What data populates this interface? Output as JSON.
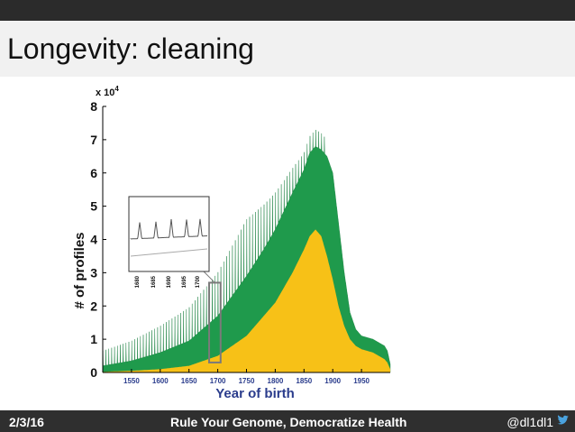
{
  "slide": {
    "title": "Longevity: cleaning",
    "footer_date": "2/3/16",
    "footer_title": "Rule Your Genome, Democratize Health",
    "footer_handle": "@dl1dl1",
    "handle_icon": "twitter-bird-icon"
  },
  "colors": {
    "total": "#1f9a4c",
    "cleaned": "#f7c117",
    "inset_box": "#7a7a7a",
    "top_bar": "#2b2b2b",
    "title_band": "#f1f1f1",
    "footer": "#2f2f2f"
  },
  "chart_data": {
    "type": "area",
    "xlabel": "Year of birth",
    "ylabel": "# of profiles",
    "y_multiplier_label": "x 10",
    "y_multiplier_exp": "4",
    "xlim": [
      1500,
      2000
    ],
    "ylim": [
      0,
      8
    ],
    "xticks": [
      "1550",
      "1600",
      "1650",
      "1700",
      "1750",
      "1800",
      "1850",
      "1900",
      "1950"
    ],
    "yticks": [
      "0",
      "1",
      "2",
      "3",
      "4",
      "5",
      "6",
      "7",
      "8"
    ],
    "peak_interval_years": 5,
    "series": [
      {
        "key": "total",
        "x": [
          1500,
          1550,
          1600,
          1650,
          1700,
          1750,
          1780,
          1800,
          1830,
          1850,
          1860,
          1870,
          1880,
          1890,
          1900,
          1910,
          1920,
          1930,
          1940,
          1950,
          1960,
          1970,
          1980,
          1990,
          1995,
          2000
        ],
        "values": [
          0.2,
          0.35,
          0.6,
          0.95,
          1.7,
          2.9,
          3.7,
          4.3,
          5.4,
          6.1,
          6.6,
          6.8,
          6.7,
          6.5,
          6.0,
          4.5,
          3.0,
          1.8,
          1.3,
          1.1,
          1.05,
          1.0,
          0.9,
          0.8,
          0.65,
          0.25
        ],
        "peaks": [
          0.45,
          0.6,
          0.8,
          1.0,
          1.3,
          1.7,
          1.1,
          0.5
        ]
      },
      {
        "key": "cleaned",
        "x": [
          1500,
          1550,
          1600,
          1650,
          1700,
          1750,
          1800,
          1830,
          1850,
          1860,
          1870,
          1880,
          1890,
          1900,
          1910,
          1920,
          1930,
          1940,
          1950,
          1960,
          1970,
          1980,
          1990,
          1995,
          2000
        ],
        "values": [
          0.02,
          0.05,
          0.1,
          0.2,
          0.5,
          1.1,
          2.1,
          3.0,
          3.7,
          4.1,
          4.3,
          4.1,
          3.5,
          2.8,
          2.0,
          1.4,
          1.0,
          0.8,
          0.7,
          0.65,
          0.6,
          0.5,
          0.4,
          0.3,
          0.1
        ]
      }
    ],
    "zoom_region": {
      "x": [
        1685,
        1705
      ],
      "y": [
        0.3,
        2.7
      ]
    },
    "inset": {
      "tick_labels": [
        "1680",
        "1685",
        "1690",
        "1695",
        "1700"
      ]
    }
  }
}
